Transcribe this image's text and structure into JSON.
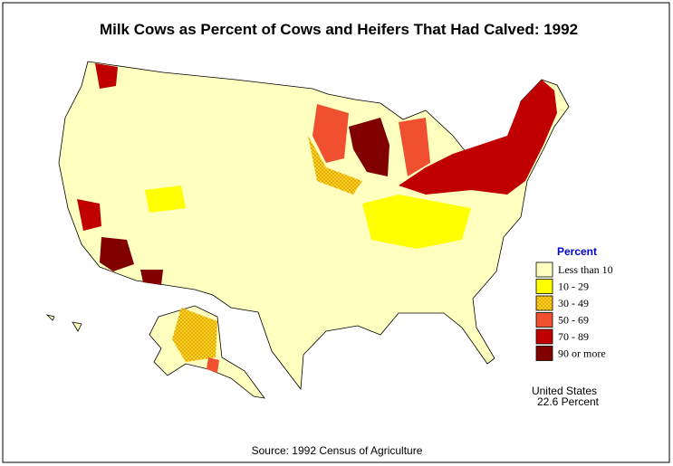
{
  "title": "Milk Cows as Percent of Cows and Heifers That Had Calved:  1992",
  "legend": {
    "title": "Percent",
    "items": [
      {
        "label": "Less than 10",
        "color": "#ffffc0"
      },
      {
        "label": "10  -  29",
        "color": "#ffff00"
      },
      {
        "label": "30  -  49",
        "color": "#e8a020",
        "hatch": true
      },
      {
        "label": "50  -  69",
        "color": "#f05030"
      },
      {
        "label": "70  -  89",
        "color": "#c00000"
      },
      {
        "label": "90 or more",
        "color": "#800000"
      }
    ]
  },
  "summary": {
    "region": "United States",
    "value": "22.6 Percent"
  },
  "source": "Source:  1992 Census of Agriculture"
}
